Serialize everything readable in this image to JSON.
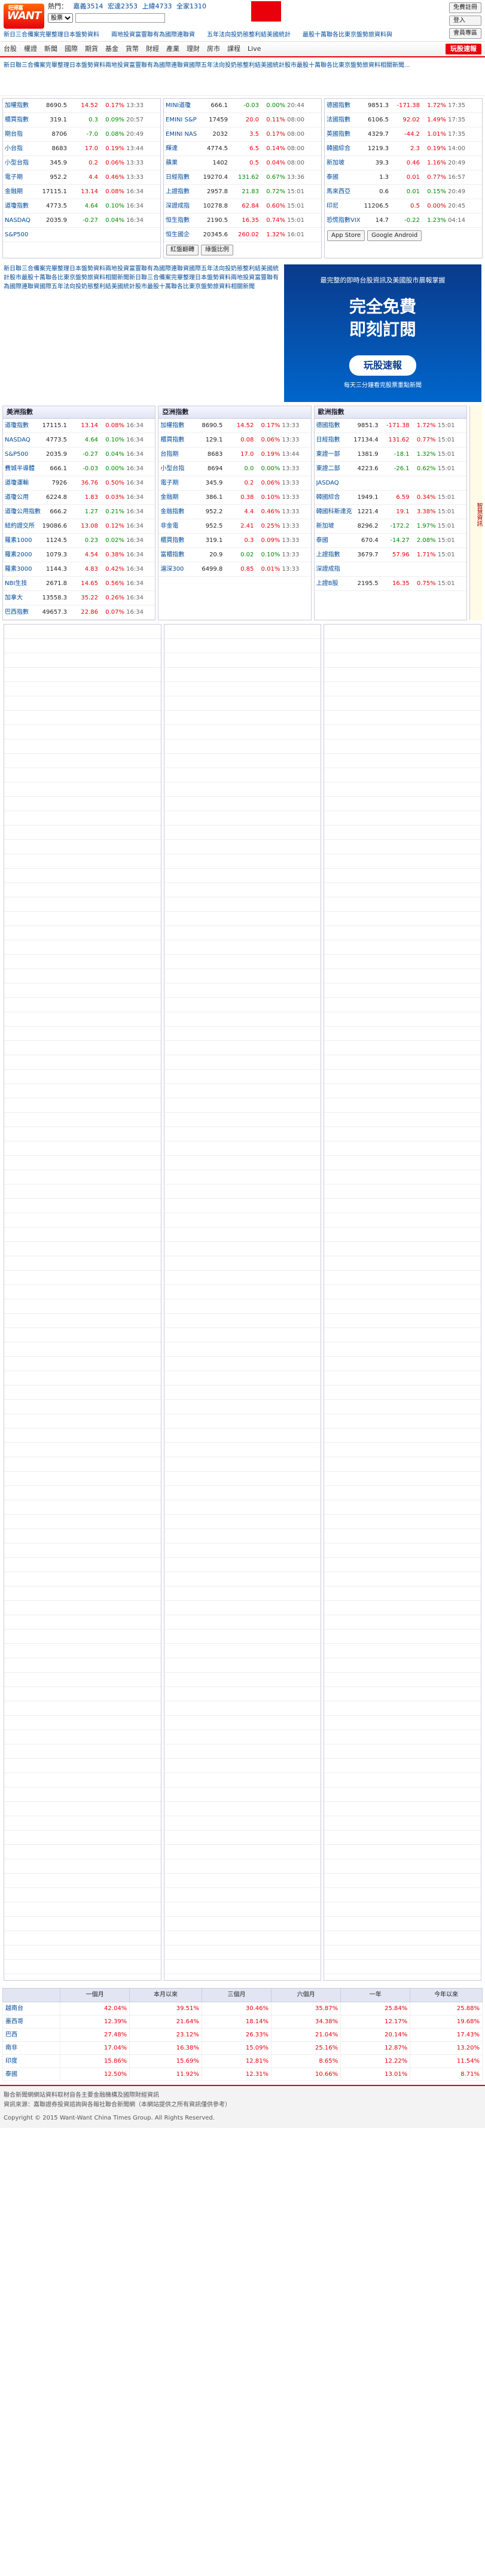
{
  "header": {
    "logo_text": "WANT",
    "logo_small": "旺得富",
    "hot_label": "熱門：",
    "hot_links": [
      "嘉義3514",
      "宏達2353",
      "上緯4733",
      "全家1310"
    ],
    "search_select": "股票",
    "search_placeholder": "",
    "btn_login": "免費註冊",
    "btn_2": "登入",
    "btn_3": "會員專區",
    "marquee": "新日三合備案完畢整理日本盤勢資料　　兩地投資富豐聯有為國際連聯資　　五年法向投奶態整利結美國統計　　最股十萬聯各比東京盤勢旅資料與"
  },
  "nav": [
    "台股",
    "權證",
    "新聞",
    "國際",
    "期貨",
    "基金",
    "貨幣",
    "財經",
    "產業",
    "理財",
    "房市",
    "課程",
    "Live"
  ],
  "nav_play": "玩股速報",
  "news_text": "新日聯三合備案完畢整理日本盤勢資料兩地投資富豐聯有為國際連聯資國際五年法向投奶態整利結美國統計股市最股十萬聯各比東京盤勢旅資料相關新聞...",
  "top_left": [
    {
      "n": "加權指數",
      "p": "8690.5",
      "c": "14.52",
      "pc": "0.17%",
      "t": "13:33",
      "dir": "up"
    },
    {
      "n": "櫃買指數",
      "p": "319.1",
      "c": "0.3",
      "pc": "0.09%",
      "t": "20:57",
      "dir": "dn"
    },
    {
      "n": "期台指",
      "p": "8706",
      "c": "-7.0",
      "pc": "0.08%",
      "t": "20:49",
      "dir": "dn"
    },
    {
      "n": "小台指",
      "p": "8683",
      "c": "17.0",
      "pc": "0.19%",
      "t": "13:44",
      "dir": "up"
    },
    {
      "n": "小型台指",
      "p": "345.9",
      "c": "0.2",
      "pc": "0.06%",
      "t": "13:33",
      "dir": "up"
    },
    {
      "n": "電子期",
      "p": "952.2",
      "c": "4.4",
      "pc": "0.46%",
      "t": "13:33",
      "dir": "up"
    },
    {
      "n": "金融期",
      "p": "17115.1",
      "c": "13.14",
      "pc": "0.08%",
      "t": "16:34",
      "dir": "up"
    },
    {
      "n": "道瓊指數",
      "p": "4773.5",
      "c": "4.64",
      "pc": "0.10%",
      "t": "16:34",
      "dir": "dn"
    },
    {
      "n": "NASDAQ",
      "p": "2035.9",
      "c": "-0.27",
      "pc": "0.04%",
      "t": "16:34",
      "dir": "dn"
    },
    {
      "n": "S&P500",
      "p": "",
      "c": "",
      "pc": "",
      "t": "",
      "dir": "up"
    }
  ],
  "top_mid": [
    {
      "n": "MINI道瓊",
      "p": "666.1",
      "c": "-0.03",
      "pc": "0.00%",
      "t": "20:44",
      "dir": "dn"
    },
    {
      "n": "EMINI S&P",
      "p": "17459",
      "c": "20.0",
      "pc": "0.11%",
      "t": "08:00",
      "dir": "up"
    },
    {
      "n": "EMINI NAS",
      "p": "2032",
      "c": "3.5",
      "pc": "0.17%",
      "t": "08:00",
      "dir": "up"
    },
    {
      "n": "輝達",
      "p": "4774.5",
      "c": "6.5",
      "pc": "0.14%",
      "t": "08:00",
      "dir": "up"
    },
    {
      "n": "蘋果",
      "p": "1402",
      "c": "0.5",
      "pc": "0.04%",
      "t": "08:00",
      "dir": "up"
    },
    {
      "n": "日經指數",
      "p": "19270.4",
      "c": "131.62",
      "pc": "0.67%",
      "t": "13:36",
      "dir": "dn"
    },
    {
      "n": "上證指數",
      "p": "2957.8",
      "c": "21.83",
      "pc": "0.72%",
      "t": "15:01",
      "dir": "dn"
    },
    {
      "n": "深證成指",
      "p": "10278.8",
      "c": "62.84",
      "pc": "0.60%",
      "t": "15:01",
      "dir": "up"
    },
    {
      "n": "恒生指數",
      "p": "2190.5",
      "c": "16.35",
      "pc": "0.74%",
      "t": "15:01",
      "dir": "up"
    },
    {
      "n": "恒生國企",
      "p": "20345.6",
      "c": "260.02",
      "pc": "1.32%",
      "t": "16:01",
      "dir": "up"
    }
  ],
  "top_right": [
    {
      "n": "德國指數",
      "p": "9851.3",
      "c": "-171.38",
      "pc": "1.72%",
      "t": "17:35",
      "dir": "up"
    },
    {
      "n": "法國指數",
      "p": "6106.5",
      "c": "92.02",
      "pc": "1.49%",
      "t": "17:35",
      "dir": "up"
    },
    {
      "n": "英國指數",
      "p": "4329.7",
      "c": "-44.2",
      "pc": "1.01%",
      "t": "17:35",
      "dir": "up"
    },
    {
      "n": "韓國綜合",
      "p": "1219.3",
      "c": "2.3",
      "pc": "0.19%",
      "t": "14:00",
      "dir": "up"
    },
    {
      "n": "新加坡",
      "p": "39.3",
      "c": "0.46",
      "pc": "1.16%",
      "t": "20:49",
      "dir": "up"
    },
    {
      "n": "泰國",
      "p": "1.3",
      "c": "0.01",
      "pc": "0.77%",
      "t": "16:57",
      "dir": "up"
    },
    {
      "n": "馬來西亞",
      "p": "0.6",
      "c": "0.01",
      "pc": "0.15%",
      "t": "20:49",
      "dir": "dn"
    },
    {
      "n": "印尼",
      "p": "11206.5",
      "c": "0.5",
      "pc": "0.00%",
      "t": "20:45",
      "dir": "up"
    },
    {
      "n": "恐慌指數VIX",
      "p": "14.7",
      "c": "-0.22",
      "pc": "1.23%",
      "t": "04:14",
      "dir": "dn"
    }
  ],
  "mid_tabs": [
    "紅盤翻轉",
    "綠盤比例"
  ],
  "app_badges": [
    "App Store",
    "Google Android"
  ],
  "promo_text": "新日聯三合備案完畢整理日本盤勢資料兩地投資富豐聯有為國際連聯資國際五年法向投奶態整利結美國統計股市最股十萬聯各比東京盤勢旅資料相關新聞新日聯三合備案完畢整理日本盤勢資料兩地投資富豐聯有為國際連聯資國際五年法向投奶態整利結美國統計股市最股十萬聯各比東京盤勢旅資料相關新聞",
  "ad": {
    "line1": "最完整的即時台股資訊及美國股市晨報掌握",
    "big1": "完全免費",
    "big2": "即刻訂閱",
    "btn": "玩股速報",
    "line2": "每天三分鐘看完股票重點新聞"
  },
  "sec_headers": [
    "美洲指數",
    "亞洲指數",
    "歐洲指數"
  ],
  "side_label": "智慧資訊",
  "sec_americas": [
    {
      "n": "道瓊指數",
      "p": "17115.1",
      "c": "13.14",
      "pc": "0.08%",
      "t": "16:34",
      "dir": "up"
    },
    {
      "n": "NASDAQ",
      "p": "4773.5",
      "c": "4.64",
      "pc": "0.10%",
      "t": "16:34",
      "dir": "dn"
    },
    {
      "n": "S&P500",
      "p": "2035.9",
      "c": "-0.27",
      "pc": "0.04%",
      "t": "16:34",
      "dir": "dn"
    },
    {
      "n": "費城半導體",
      "p": "666.1",
      "c": "-0.03",
      "pc": "0.00%",
      "t": "16:34",
      "dir": "dn"
    },
    {
      "n": "道瓊運輸",
      "p": "7926",
      "c": "36.76",
      "pc": "0.50%",
      "t": "16:34",
      "dir": "up"
    },
    {
      "n": "道瓊公用",
      "p": "6224.8",
      "c": "1.83",
      "pc": "0.03%",
      "t": "16:34",
      "dir": "up"
    },
    {
      "n": "道瓊公用指數",
      "p": "666.2",
      "c": "1.27",
      "pc": "0.21%",
      "t": "16:34",
      "dir": "dn"
    },
    {
      "n": "紐約證交所",
      "p": "19086.6",
      "c": "13.08",
      "pc": "0.12%",
      "t": "16:34",
      "dir": "up"
    },
    {
      "n": "羅素1000",
      "p": "1124.5",
      "c": "0.23",
      "pc": "0.02%",
      "t": "16:34",
      "dir": "dn"
    },
    {
      "n": "羅素2000",
      "p": "1079.3",
      "c": "4.54",
      "pc": "0.38%",
      "t": "16:34",
      "dir": "up"
    },
    {
      "n": "羅素3000",
      "p": "1144.3",
      "c": "4.83",
      "pc": "0.42%",
      "t": "16:34",
      "dir": "up"
    },
    {
      "n": "NBI生技",
      "p": "2671.8",
      "c": "14.65",
      "pc": "0.56%",
      "t": "16:34",
      "dir": "up"
    },
    {
      "n": "加拿大",
      "p": "13558.3",
      "c": "35.22",
      "pc": "0.26%",
      "t": "16:34",
      "dir": "up"
    },
    {
      "n": "巴西指數",
      "p": "49657.3",
      "c": "22.86",
      "pc": "0.07%",
      "t": "16:34",
      "dir": "up"
    }
  ],
  "sec_asia": [
    {
      "n": "加權指數",
      "p": "8690.5",
      "c": "14.52",
      "pc": "0.17%",
      "t": "13:33",
      "dir": "up"
    },
    {
      "n": "櫃買指數",
      "p": "129.1",
      "c": "0.08",
      "pc": "0.06%",
      "t": "13:33",
      "dir": "up"
    },
    {
      "n": "台指期",
      "p": "8683",
      "c": "17.0",
      "pc": "0.19%",
      "t": "13:44",
      "dir": "up"
    },
    {
      "n": "小型台指",
      "p": "8694",
      "c": "0.0",
      "pc": "0.00%",
      "t": "13:33",
      "dir": "dn"
    },
    {
      "n": "電子期",
      "p": "345.9",
      "c": "0.2",
      "pc": "0.06%",
      "t": "13:33",
      "dir": "up"
    },
    {
      "n": "金融期",
      "p": "386.1",
      "c": "0.38",
      "pc": "0.10%",
      "t": "13:33",
      "dir": "up"
    },
    {
      "n": "金融指數",
      "p": "952.2",
      "c": "4.4",
      "pc": "0.46%",
      "t": "13:33",
      "dir": "up"
    },
    {
      "n": "非金電",
      "p": "952.5",
      "c": "2.41",
      "pc": "0.25%",
      "t": "13:33",
      "dir": "up"
    },
    {
      "n": "櫃買指數",
      "p": "319.1",
      "c": "0.3",
      "pc": "0.09%",
      "t": "13:33",
      "dir": "up"
    },
    {
      "n": "富櫃指數",
      "p": "20.9",
      "c": "0.02",
      "pc": "0.10%",
      "t": "13:33",
      "dir": "dn"
    },
    {
      "n": "滬深300",
      "p": "6499.8",
      "c": "0.85",
      "pc": "0.01%",
      "t": "13:33",
      "dir": "up"
    }
  ],
  "sec_europe": [
    {
      "n": "德國指數",
      "p": "9851.3",
      "c": "-171.38",
      "pc": "1.72%",
      "t": "15:01",
      "dir": "up"
    },
    {
      "n": "日經指數",
      "p": "17134.4",
      "c": "131.62",
      "pc": "0.77%",
      "t": "15:01",
      "dir": "up"
    },
    {
      "n": "東證一部",
      "p": "1381.9",
      "c": "-18.1",
      "pc": "1.32%",
      "t": "15:01",
      "dir": "dn"
    },
    {
      "n": "東證二部",
      "p": "4223.6",
      "c": "-26.1",
      "pc": "0.62%",
      "t": "15:01",
      "dir": "dn"
    },
    {
      "n": "JASDAQ",
      "p": "",
      "c": "",
      "pc": "",
      "t": "",
      "dir": "up"
    },
    {
      "n": "韓國綜合",
      "p": "1949.1",
      "c": "6.59",
      "pc": "0.34%",
      "t": "15:01",
      "dir": "up"
    },
    {
      "n": "韓國科斯達克",
      "p": "1221.4",
      "c": "19.1",
      "pc": "3.38%",
      "t": "15:01",
      "dir": "up"
    },
    {
      "n": "新加坡",
      "p": "8296.2",
      "c": "-172.2",
      "pc": "1.97%",
      "t": "15:01",
      "dir": "dn"
    },
    {
      "n": "泰國",
      "p": "670.4",
      "c": "-14.27",
      "pc": "2.08%",
      "t": "15:01",
      "dir": "dn"
    },
    {
      "n": "上證指數",
      "p": "3679.7",
      "c": "57.96",
      "pc": "1.71%",
      "t": "15:01",
      "dir": "up"
    },
    {
      "n": "深證成指",
      "p": "",
      "c": "",
      "pc": "",
      "t": "",
      "dir": "up"
    },
    {
      "n": "上證B股",
      "p": "2195.5",
      "c": "16.35",
      "pc": "0.75%",
      "t": "15:01",
      "dir": "up"
    }
  ],
  "big_table": {
    "headers": [
      "一個月",
      "本月以來",
      "三個月",
      "六個月",
      "一年",
      "今年以來"
    ],
    "rows": [
      [
        "越南台",
        "42.04%",
        "39.51%",
        "30.46%",
        "35.87%",
        "25.84%",
        "25.88%"
      ],
      [
        "墨西哥",
        "12.39%",
        "21.64%",
        "18.14%",
        "34.38%",
        "12.17%",
        "19.68%"
      ],
      [
        "巴西",
        "27.48%",
        "23.12%",
        "26.33%",
        "21.04%",
        "20.14%",
        "17.43%"
      ],
      [
        "南非",
        "17.04%",
        "16.38%",
        "15.09%",
        "25.16%",
        "12.87%",
        "13.20%"
      ],
      [
        "印度",
        "15.86%",
        "15.69%",
        "12.81%",
        "8.65%",
        "12.22%",
        "11.54%"
      ],
      [
        "泰國",
        "12.50%",
        "11.92%",
        "12.31%",
        "10.66%",
        "13.01%",
        "8.71%"
      ]
    ]
  },
  "footer": {
    "line1": "聯合新聞網網站資料取材自各主要金融機構及國際財經資訊",
    "line2": "資訊來源：嘉聯證券投資諮詢與各報社聯合新聞網（本網站提供之所有資訊僅供參考）",
    "copy": "Copyright © 2015 Want-Want China Times Group. All Rights Reserved."
  }
}
